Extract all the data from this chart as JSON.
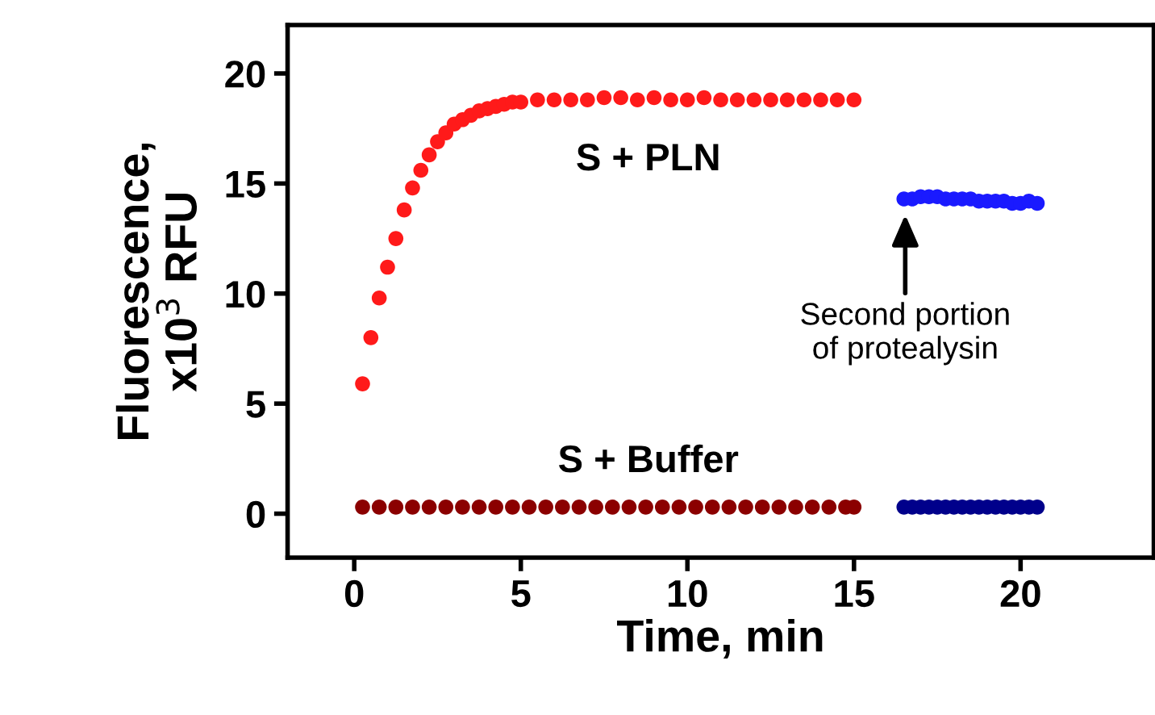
{
  "chart_data": {
    "type": "scatter",
    "xlabel": "Time, min",
    "ylabel": "Fluorescence,\nx10$^{3}$ RFU",
    "xlim": [
      -2,
      24
    ],
    "ylim": [
      -2,
      22.2
    ],
    "xticks": [
      0,
      5,
      10,
      15,
      20
    ],
    "yticks": [
      0,
      5,
      10,
      15,
      20
    ],
    "grid": false,
    "legend": false,
    "marker": "circle",
    "series": [
      {
        "name": "S + PLN",
        "color": "#ff1a1a",
        "x": [
          0.25,
          0.5,
          0.75,
          1.0,
          1.25,
          1.5,
          1.75,
          2.0,
          2.25,
          2.5,
          2.75,
          3.0,
          3.25,
          3.5,
          3.75,
          4.0,
          4.25,
          4.5,
          4.75,
          5.0,
          5.5,
          6.0,
          6.5,
          7.0,
          7.5,
          8.0,
          8.5,
          9.0,
          9.5,
          10.0,
          10.5,
          11.0,
          11.5,
          12.0,
          12.5,
          13.0,
          13.5,
          14.0,
          14.5,
          15.0
        ],
        "values": [
          5.9,
          8.0,
          9.8,
          11.2,
          12.5,
          13.8,
          14.8,
          15.6,
          16.3,
          16.9,
          17.3,
          17.7,
          17.9,
          18.1,
          18.3,
          18.4,
          18.5,
          18.6,
          18.7,
          18.7,
          18.8,
          18.8,
          18.8,
          18.8,
          18.9,
          18.9,
          18.8,
          18.9,
          18.8,
          18.8,
          18.9,
          18.8,
          18.8,
          18.8,
          18.8,
          18.8,
          18.8,
          18.8,
          18.8,
          18.8
        ]
      },
      {
        "name": "S + Buffer",
        "color": "#8b0000",
        "x": [
          0.25,
          0.75,
          1.25,
          1.75,
          2.25,
          2.75,
          3.25,
          3.75,
          4.25,
          4.75,
          5.25,
          5.75,
          6.25,
          6.75,
          7.25,
          7.75,
          8.25,
          8.75,
          9.25,
          9.75,
          10.25,
          10.75,
          11.25,
          11.75,
          12.25,
          12.75,
          13.25,
          13.75,
          14.25,
          14.75,
          15.0
        ],
        "values": [
          0.3,
          0.3,
          0.3,
          0.3,
          0.3,
          0.3,
          0.3,
          0.3,
          0.3,
          0.3,
          0.3,
          0.3,
          0.3,
          0.3,
          0.3,
          0.3,
          0.3,
          0.3,
          0.3,
          0.3,
          0.3,
          0.3,
          0.3,
          0.3,
          0.3,
          0.3,
          0.3,
          0.3,
          0.3,
          0.3,
          0.3
        ]
      },
      {
        "color": "#1a1aff",
        "x": [
          16.5,
          16.75,
          17.0,
          17.25,
          17.5,
          17.75,
          18.0,
          18.25,
          18.5,
          18.75,
          19.0,
          19.25,
          19.5,
          19.75,
          20.0,
          20.25,
          20.5
        ],
        "values": [
          14.3,
          14.3,
          14.4,
          14.4,
          14.4,
          14.3,
          14.3,
          14.3,
          14.3,
          14.2,
          14.2,
          14.2,
          14.2,
          14.1,
          14.1,
          14.2,
          14.1
        ]
      },
      {
        "color": "#00008b",
        "x": [
          16.5,
          16.75,
          17.0,
          17.25,
          17.5,
          17.75,
          18.0,
          18.25,
          18.5,
          18.75,
          19.0,
          19.25,
          19.5,
          19.75,
          20.0,
          20.25,
          20.5
        ],
        "values": [
          0.3,
          0.3,
          0.3,
          0.3,
          0.3,
          0.3,
          0.3,
          0.3,
          0.3,
          0.3,
          0.3,
          0.3,
          0.3,
          0.3,
          0.3,
          0.3,
          0.3
        ]
      }
    ],
    "annotations": [
      "Second portion\nof protealysin"
    ]
  }
}
